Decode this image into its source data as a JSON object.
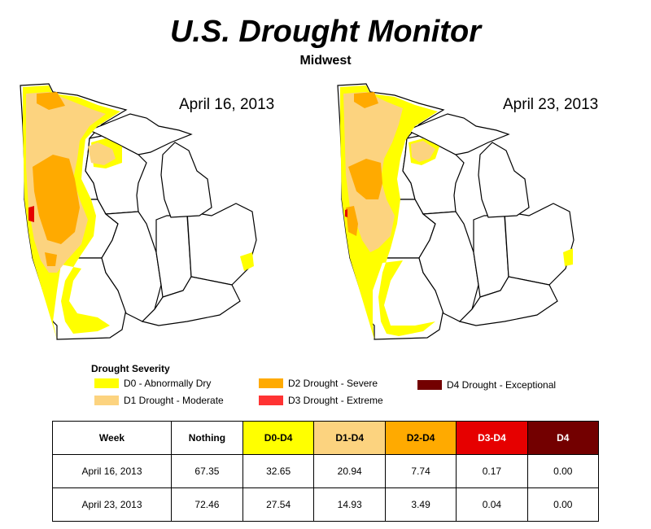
{
  "header": {
    "title": "U.S. Drought Monitor",
    "subtitle": "Midwest"
  },
  "maps": [
    {
      "date": "April 16, 2013"
    },
    {
      "date": "April 23, 2013"
    }
  ],
  "colors": {
    "D0": "#ffff00",
    "D1": "#fcd37f",
    "D2": "#ffaa00",
    "D3": "#e60000",
    "D4": "#730000",
    "D3_legend": "#ff3333"
  },
  "legend": {
    "title": "Drought Severity",
    "items": [
      {
        "key": "D0",
        "label": "D0 - Abnormally Dry"
      },
      {
        "key": "D1",
        "label": "D1 Drought - Moderate"
      },
      {
        "key": "D2",
        "label": "D2 Drought - Severe"
      },
      {
        "key": "D3",
        "label": "D3 Drought - Extreme"
      },
      {
        "key": "D4",
        "label": "D4 Drought - Exceptional"
      }
    ]
  },
  "table": {
    "headers": [
      "Week",
      "Nothing",
      "D0-D4",
      "D1-D4",
      "D2-D4",
      "D3-D4",
      "D4"
    ],
    "rows": [
      [
        "April 16, 2013",
        "67.35",
        "32.65",
        "20.94",
        "7.74",
        "0.17",
        "0.00"
      ],
      [
        "April 23, 2013",
        "72.46",
        "27.54",
        "14.93",
        "3.49",
        "0.04",
        "0.00"
      ]
    ]
  }
}
